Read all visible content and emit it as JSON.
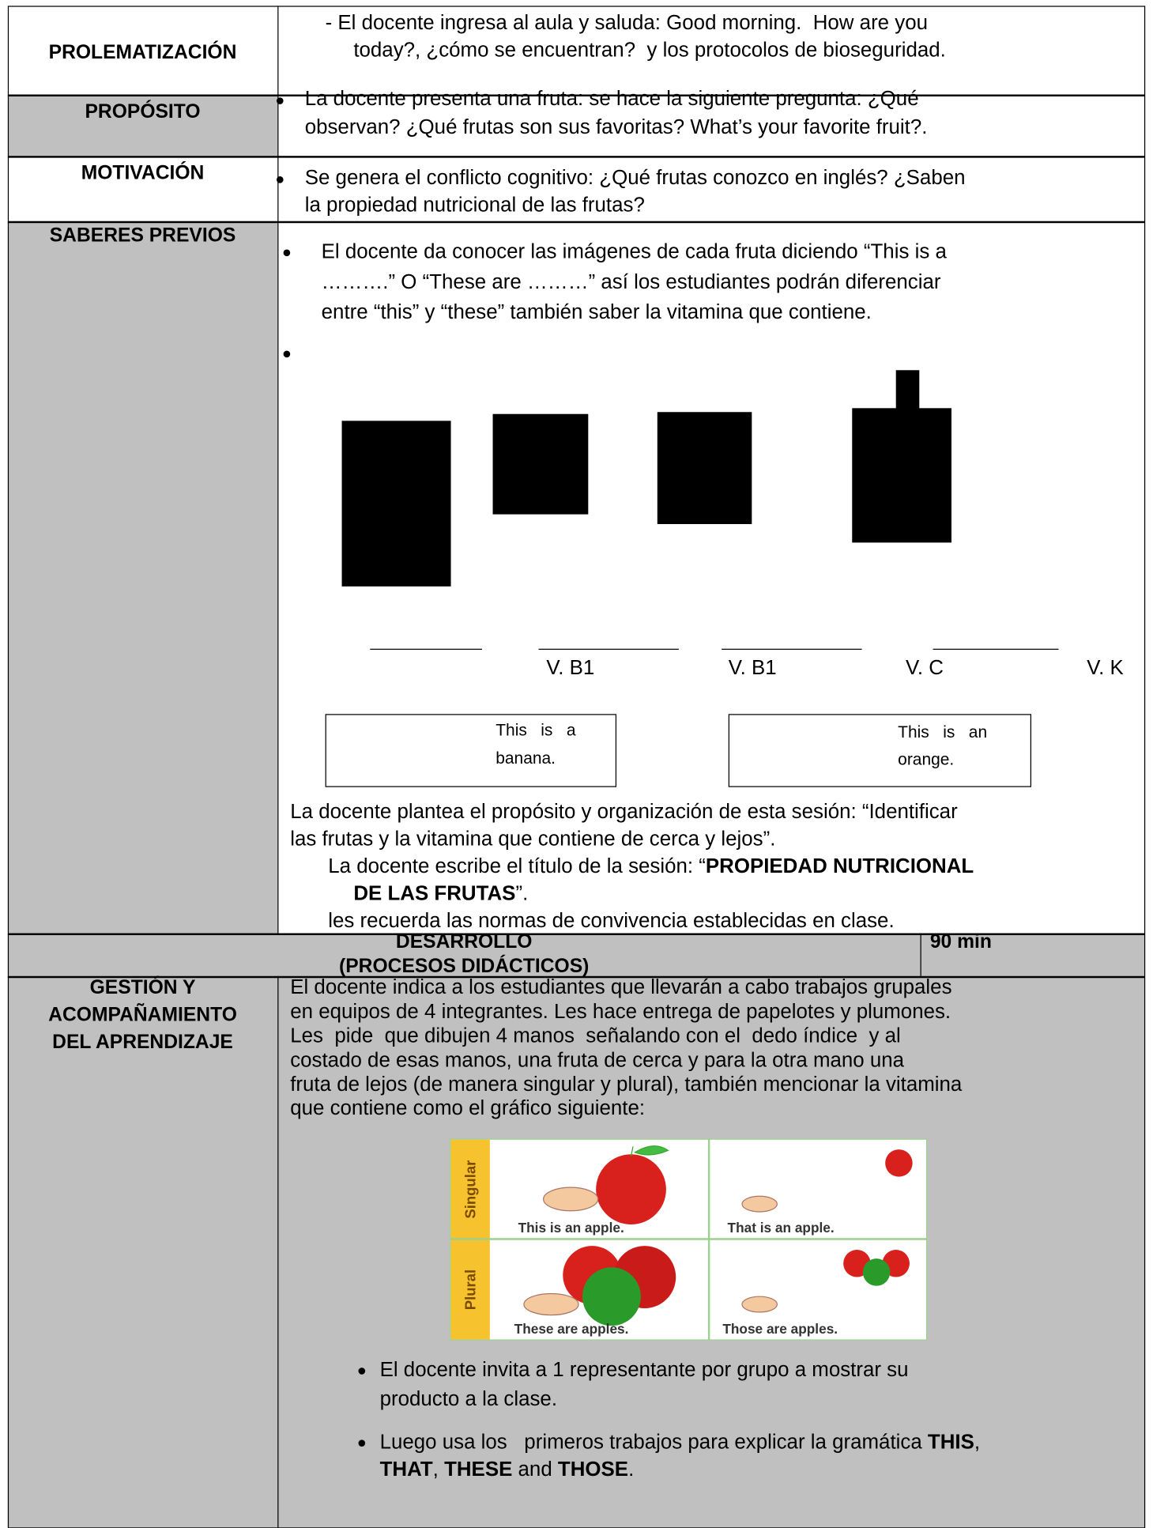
{
  "problematizacion": {
    "label": "PROLEMATIZACIÓN",
    "lines": [
      "- El docente ingresa al aula y saluda: Good morning.  How are you",
      "today?, ¿cómo se encuentran?  y los protocolos de bioseguridad."
    ]
  },
  "proposito": {
    "label": "PROPÓSITO",
    "lines": [
      "La docente presenta una fruta: se hace la siguiente pregunta: ¿Qué",
      "observan? ¿Qué frutas son sus favoritas? What’s your favorite fruit?."
    ]
  },
  "motivacion": {
    "label": "MOTIVACIÓN",
    "lines": [
      "Se genera el conflicto cognitivo: ¿Qué frutas conozco en inglés? ¿Saben",
      "la propiedad nutricional de las frutas?"
    ]
  },
  "saberes_previos": {
    "label": "SABERES PREVIOS",
    "bullet_lines": [
      "El docente da conocer las imágenes de cada fruta diciendo “This is a",
      "……….” O “These are ………” así los estudiantes podrán diferenciar",
      "entre “this” y “these” también saber la vitamina que contiene."
    ],
    "vitamins": [
      "V. B1",
      "V. B1",
      "V. C",
      "V. K"
    ],
    "boxes": [
      {
        "line_1": "This   is   a",
        "line_2": "banana."
      },
      {
        "line_1": "This   is   an",
        "line_2": "orange."
      }
    ],
    "paragraph": [
      "La docente plantea el propósito y organización de esta sesión: “Identificar",
      "las frutas y la vitamina que contiene de cerca y lejos”."
    ],
    "title_parts": [
      "La docente escribe el título de la sesión: “",
      "PROPIEDAD NUTRICIONAL",
      "DE LAS FRUTAS",
      "”."
    ],
    "norms": "les recuerda las normas de convivencia establecidas en clase."
  },
  "desarrollo": {
    "title_1": "DESARROLLO",
    "title_2": "(PROCESOS DIDÁCTICOS)",
    "time": "90 min"
  },
  "gestion": {
    "label_lines": [
      "GESTIÓN Y",
      "ACOMPAÑAMIENTO",
      "DEL APRENDIZAJE"
    ],
    "lines": [
      "El docente indica a los estudiantes que llevarán a cabo trabajos grupales",
      "en equipos de 4 integrantes. Les hace entrega de papelotes y plumones.",
      "Les  pide  que dibujen 4 manos  señalando con el  dedo índice  y al",
      "costado de esas manos, una fruta de cerca y para la otra mano una",
      "fruta de lejos (de manera singular y plural), también mencionar la vitamina",
      "que contiene como el gráfico siguiente:"
    ],
    "figure": {
      "row_labels": [
        "Singular",
        "Plural"
      ],
      "captions": [
        "This is an apple.",
        "That is an apple.",
        "These are apples.",
        "Those are apples."
      ]
    },
    "bullet_1": [
      "El docente invita a 1 representante por grupo a mostrar su",
      "producto a la clase."
    ],
    "bullet_2": [
      "Luego usa los   primeros trabajos para explicar la gramática ",
      "THIS",
      ",",
      "THAT",
      ", ",
      "THESE",
      " and ",
      "THOSE",
      "."
    ]
  }
}
